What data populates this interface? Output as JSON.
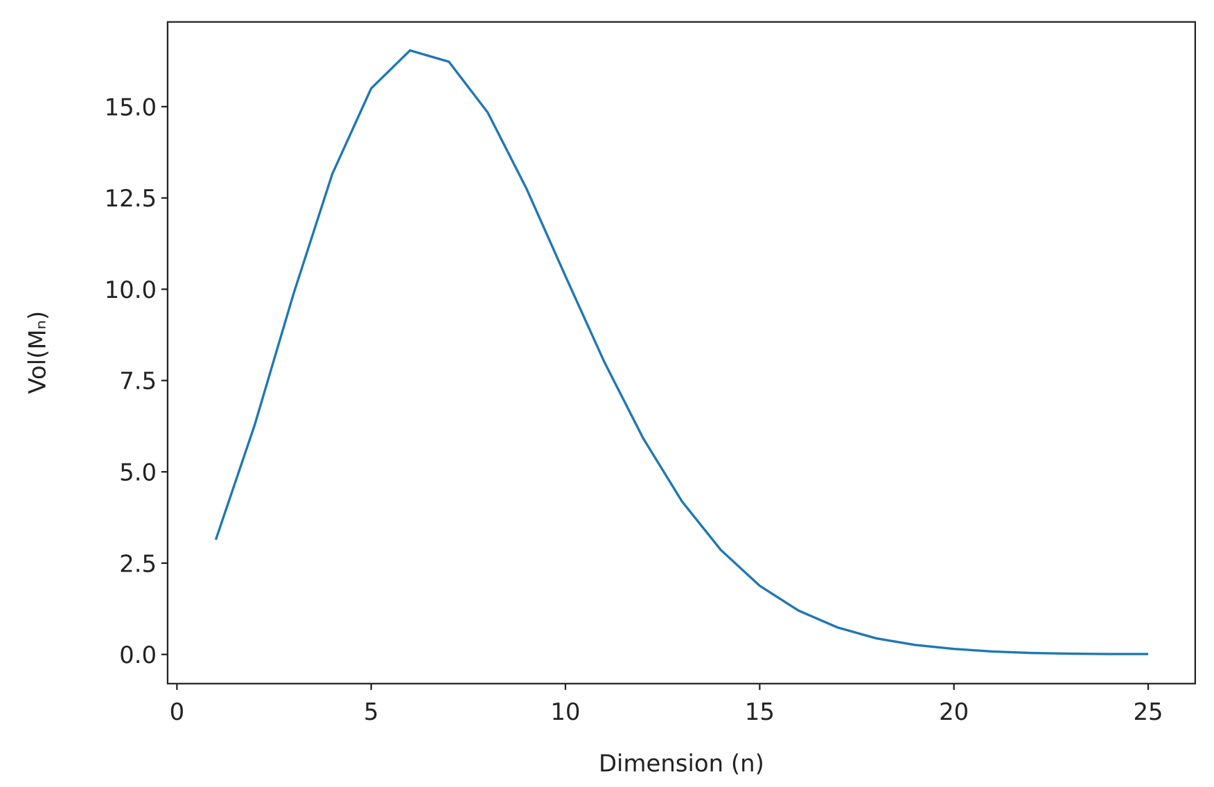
{
  "chart_data": {
    "type": "line",
    "xlabel": "Dimension (n)",
    "ylabel": "Vol(Mₙ)",
    "x": [
      1,
      2,
      3,
      4,
      5,
      6,
      7,
      8,
      9,
      10,
      11,
      12,
      13,
      14,
      15,
      16,
      17,
      18,
      19,
      20,
      21,
      22,
      23,
      24,
      25
    ],
    "series": [
      {
        "name": "Vol",
        "color": "#1f77b4",
        "values": [
          3.14,
          6.28,
          9.87,
          13.16,
          15.5,
          16.54,
          16.23,
          14.84,
          12.75,
          10.36,
          8.01,
          5.92,
          4.19,
          2.86,
          1.88,
          1.2,
          0.74,
          0.44,
          0.26,
          0.15,
          0.08,
          0.04,
          0.02,
          0.01,
          0.01
        ]
      }
    ],
    "xlim": [
      -0.24,
      26.21
    ],
    "ylim": [
      -0.8,
      17.32
    ],
    "xticks": [
      0,
      5,
      10,
      15,
      20,
      25
    ],
    "yticks": [
      {
        "value": 0,
        "label": "0.0"
      },
      2.5,
      {
        "value": 5,
        "label": "5.0"
      },
      7.5,
      {
        "value": 10,
        "label": "10.0"
      },
      12.5,
      {
        "value": 15,
        "label": "15.0"
      }
    ]
  }
}
